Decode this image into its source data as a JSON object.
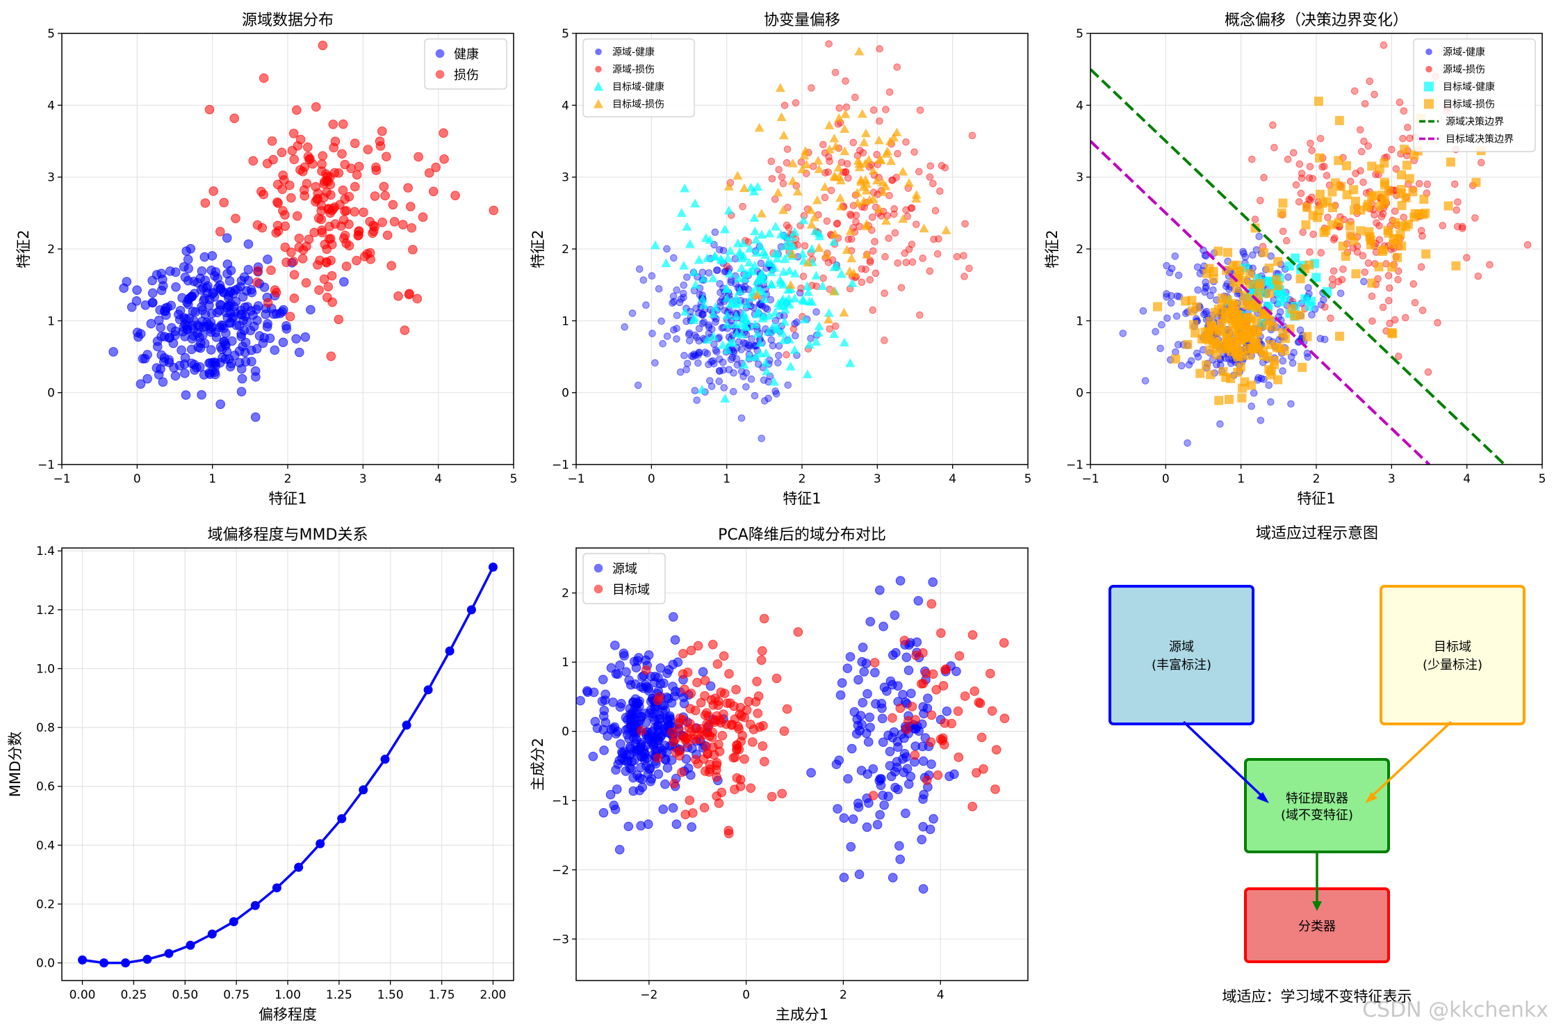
{
  "watermark": "CSDN @kkchenkx",
  "colors": {
    "blue": "#0000ff",
    "red": "#ff0000",
    "cyan": "#00ffff",
    "orange": "#ffa500",
    "green": "#008000",
    "magenta": "#bf00bf"
  },
  "chart_data": [
    {
      "id": "source",
      "type": "scatter",
      "title": "源域数据分布",
      "xlabel": "特征1",
      "ylabel": "特征2",
      "xlim": [
        -1,
        5
      ],
      "ylim": [
        -1,
        5
      ],
      "xticks": [
        "−1",
        "0",
        "1",
        "2",
        "3",
        "4",
        "5"
      ],
      "yticks": [
        "−1",
        "0",
        "1",
        "2",
        "3",
        "4",
        "5"
      ],
      "grid": true,
      "legend": "top-right",
      "series": [
        {
          "name": "健康",
          "color": "#0000ff",
          "marker": "circle",
          "cluster": {
            "cx": 1.0,
            "cy": 1.0,
            "sx": 0.5,
            "sy": 0.5,
            "n": 300
          }
        },
        {
          "name": "损伤",
          "color": "#ff0000",
          "marker": "circle",
          "cluster": {
            "cx": 2.6,
            "cy": 2.5,
            "sx": 0.7,
            "sy": 0.8,
            "n": 200
          }
        }
      ]
    },
    {
      "id": "covariate",
      "type": "scatter",
      "title": "协变量偏移",
      "xlabel": "特征1",
      "ylabel": "特征2",
      "xlim": [
        -1,
        5
      ],
      "ylim": [
        -1,
        5
      ],
      "xticks": [
        "−1",
        "0",
        "1",
        "2",
        "3",
        "4",
        "5"
      ],
      "yticks": [
        "−1",
        "0",
        "1",
        "2",
        "3",
        "4",
        "5"
      ],
      "grid": true,
      "legend": "top-left",
      "series": [
        {
          "name": "源域-健康",
          "color": "#0000ff",
          "marker": "circle",
          "cluster": {
            "cx": 1.0,
            "cy": 1.0,
            "sx": 0.5,
            "sy": 0.5,
            "n": 300
          }
        },
        {
          "name": "源域-损伤",
          "color": "#ff0000",
          "marker": "circle",
          "cluster": {
            "cx": 2.6,
            "cy": 2.5,
            "sx": 0.7,
            "sy": 0.8,
            "n": 200
          }
        },
        {
          "name": "目标域-健康",
          "color": "#00ffff",
          "marker": "triangle",
          "cluster": {
            "cx": 1.5,
            "cy": 1.5,
            "sx": 0.5,
            "sy": 0.6,
            "n": 200
          }
        },
        {
          "name": "目标域-损伤",
          "color": "#ffa500",
          "marker": "triangle",
          "cluster": {
            "cx": 2.5,
            "cy": 2.8,
            "sx": 0.6,
            "sy": 0.6,
            "n": 100
          }
        }
      ]
    },
    {
      "id": "concept",
      "type": "scatter",
      "title": "概念偏移（决策边界变化）",
      "xlabel": "特征1",
      "ylabel": "特征2",
      "xlim": [
        -1,
        5
      ],
      "ylim": [
        -1,
        5
      ],
      "xticks": [
        "−1",
        "0",
        "1",
        "2",
        "3",
        "4",
        "5"
      ],
      "yticks": [
        "−1",
        "0",
        "1",
        "2",
        "3",
        "4",
        "5"
      ],
      "grid": true,
      "legend": "top-right",
      "series": [
        {
          "name": "源域-健康",
          "color": "#0000ff",
          "marker": "circle",
          "cluster": {
            "cx": 1.0,
            "cy": 1.0,
            "sx": 0.5,
            "sy": 0.5,
            "n": 300
          }
        },
        {
          "name": "源域-损伤",
          "color": "#ff0000",
          "marker": "circle",
          "cluster": {
            "cx": 2.6,
            "cy": 2.5,
            "sx": 0.7,
            "sy": 0.8,
            "n": 200
          }
        },
        {
          "name": "目标域-健康",
          "color": "#00ffff",
          "marker": "square",
          "cluster": {
            "cx": 1.5,
            "cy": 1.4,
            "sx": 0.3,
            "sy": 0.25,
            "n": 40
          }
        },
        {
          "name": "目标域-损伤",
          "color": "#ffa500",
          "marker": "square",
          "cluster": {
            "cx": 1.0,
            "cy": 0.9,
            "sx": 0.35,
            "sy": 0.4,
            "n": 180
          }
        },
        {
          "name": "目标域-损伤",
          "color": "#ffa500",
          "marker": "square",
          "hidden_label": true,
          "cluster": {
            "cx": 2.6,
            "cy": 2.6,
            "sx": 0.6,
            "sy": 0.6,
            "n": 100
          }
        }
      ],
      "lines": [
        {
          "name": "源域决策边界",
          "color": "#008000",
          "points": [
            [
              -1,
              4.5
            ],
            [
              4.5,
              -1
            ]
          ]
        },
        {
          "name": "目标域决策边界",
          "color": "#bf00bf",
          "points": [
            [
              -1,
              3.5
            ],
            [
              3.5,
              -1
            ]
          ]
        }
      ]
    },
    {
      "id": "mmd",
      "type": "line",
      "title": "域偏移程度与MMD关系",
      "xlabel": "偏移程度",
      "ylabel": "MMD分数",
      "xlim": [
        -0.1,
        2.1
      ],
      "ylim": [
        -0.06,
        1.41
      ],
      "xticks": [
        "0.00",
        "0.25",
        "0.50",
        "0.75",
        "1.00",
        "1.25",
        "1.50",
        "1.75",
        "2.00"
      ],
      "xtick_values": [
        0,
        0.25,
        0.5,
        0.75,
        1,
        1.25,
        1.5,
        1.75,
        2
      ],
      "yticks": [
        "0.0",
        "0.2",
        "0.4",
        "0.6",
        "0.8",
        "1.0",
        "1.2",
        "1.4"
      ],
      "ytick_values": [
        0,
        0.2,
        0.4,
        0.6,
        0.8,
        1.0,
        1.2,
        1.4
      ],
      "grid": true,
      "x": [
        0,
        0.105,
        0.21,
        0.316,
        0.421,
        0.526,
        0.632,
        0.737,
        0.842,
        0.947,
        1.053,
        1.158,
        1.263,
        1.368,
        1.474,
        1.579,
        1.684,
        1.789,
        1.895,
        2.0
      ],
      "y": [
        0.01,
        0.0,
        0.0,
        0.012,
        0.032,
        0.06,
        0.098,
        0.14,
        0.195,
        0.255,
        0.325,
        0.405,
        0.49,
        0.588,
        0.692,
        0.808,
        0.928,
        1.06,
        1.2,
        1.345
      ],
      "color": "#0000ff"
    },
    {
      "id": "pca",
      "type": "scatter",
      "title": "PCA降维后的域分布对比",
      "xlabel": "主成分1",
      "ylabel": "主成分2",
      "xlim": [
        -3.5,
        5.8
      ],
      "ylim": [
        -3.6,
        2.65
      ],
      "xticks": [
        "−2",
        "0",
        "2",
        "4"
      ],
      "xtick_values": [
        -2,
        0,
        2,
        4
      ],
      "yticks": [
        "−3",
        "−2",
        "−1",
        "0",
        "1",
        "2"
      ],
      "ytick_values": [
        -3,
        -2,
        -1,
        0,
        1,
        2
      ],
      "grid": true,
      "legend": "top-left",
      "series": [
        {
          "name": "源域",
          "color": "#0000ff",
          "marker": "circle",
          "cluster": {
            "cx": -2.0,
            "cy": 0.0,
            "sx": 0.5,
            "sy": 0.55,
            "n": 300
          }
        },
        {
          "name": "源域",
          "color": "#0000ff",
          "marker": "circle",
          "hidden_label": true,
          "cluster": {
            "cx": 3.0,
            "cy": 0.0,
            "sx": 0.6,
            "sy": 0.9,
            "n": 150
          }
        },
        {
          "name": "目标域",
          "color": "#ff0000",
          "marker": "circle",
          "cluster": {
            "cx": -0.5,
            "cy": 0.0,
            "sx": 0.6,
            "sy": 0.6,
            "n": 150
          }
        },
        {
          "name": "目标域",
          "color": "#ff0000",
          "marker": "circle",
          "hidden_label": true,
          "cluster": {
            "cx": 4.0,
            "cy": 0.2,
            "sx": 0.6,
            "sy": 0.8,
            "n": 50
          }
        }
      ]
    }
  ],
  "diagram": {
    "title": "域适应过程示意图",
    "caption": "域适应：学习域不变特征表示",
    "boxes": {
      "source": {
        "line1": "源域",
        "line2": "(丰富标注)",
        "fill": "#add8e6",
        "stroke": "#0000ff"
      },
      "target": {
        "line1": "目标域",
        "line2": "(少量标注)",
        "fill": "#ffffe0",
        "stroke": "#ffa500"
      },
      "extractor": {
        "line1": "特征提取器",
        "line2": "(域不变特征)",
        "fill": "#90ee90",
        "stroke": "#008000"
      },
      "classifier": {
        "line1": "分类器",
        "fill": "#f08080",
        "stroke": "#ff0000"
      }
    }
  }
}
